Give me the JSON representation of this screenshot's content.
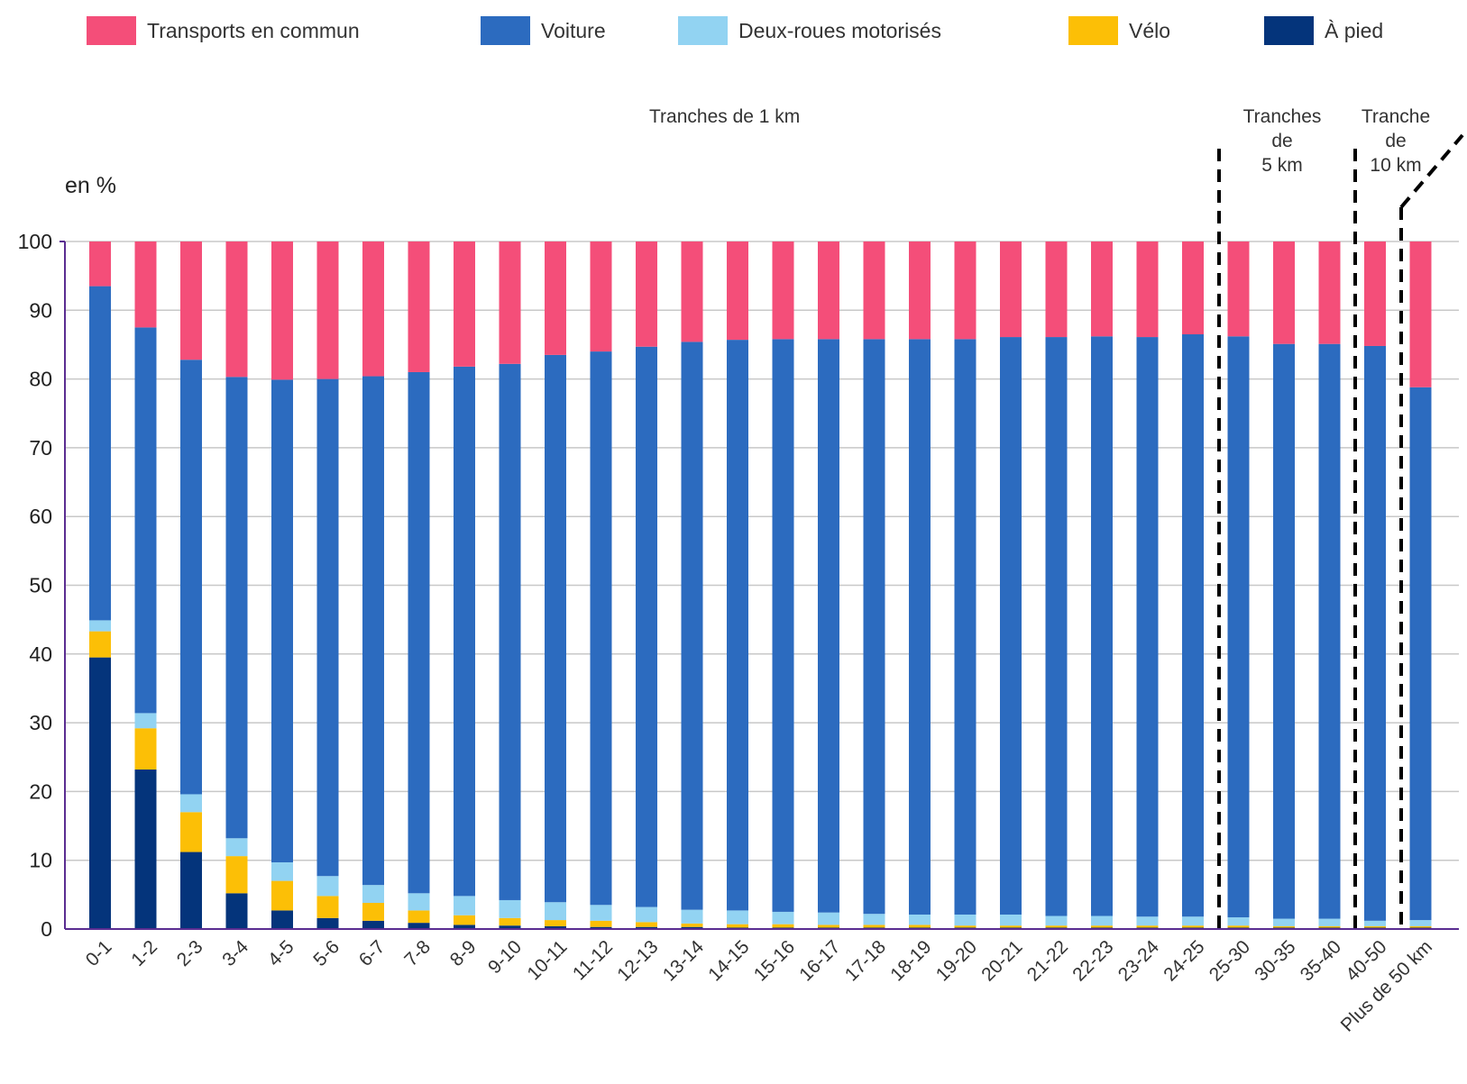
{
  "legend": {
    "items": [
      {
        "label": "Transports en commun",
        "color": "#f44e79"
      },
      {
        "label": "Voiture",
        "color": "#2c6bbf"
      },
      {
        "label": "Deux-roues motorisés",
        "color": "#92d3f2"
      },
      {
        "label": "Vélo",
        "color": "#fcbf06"
      },
      {
        "label": "À pied",
        "color": "#04347b"
      }
    ]
  },
  "annotations": {
    "unit": "en %",
    "group1": "Tranches de 1 km",
    "group2_line1": "Tranches",
    "group2_line2": "de",
    "group2_line3": "5 km",
    "group3_line1": "Tranche",
    "group3_line2": "de",
    "group3_line3": "10 km"
  },
  "chart_data": {
    "type": "bar",
    "stacked": true,
    "ylabel": "en %",
    "ylim": [
      0,
      100
    ],
    "yticks": [
      0,
      10,
      20,
      30,
      40,
      50,
      60,
      70,
      80,
      90,
      100
    ],
    "grid": true,
    "legend_position": "top",
    "categories": [
      "0-1",
      "1-2",
      "2-3",
      "3-4",
      "4-5",
      "5-6",
      "6-7",
      "7-8",
      "8-9",
      "9-10",
      "10-11",
      "11-12",
      "12-13",
      "13-14",
      "14-15",
      "15-16",
      "16-17",
      "17-18",
      "18-19",
      "19-20",
      "20-21",
      "21-22",
      "22-23",
      "23-24",
      "24-25",
      "25-30",
      "30-35",
      "35-40",
      "40-50",
      "Plus de 50 km"
    ],
    "series": [
      {
        "name": "À pied",
        "color": "#04347b",
        "values": [
          39.5,
          23.2,
          11.2,
          5.2,
          2.7,
          1.6,
          1.2,
          0.9,
          0.6,
          0.5,
          0.4,
          0.3,
          0.3,
          0.3,
          0.2,
          0.2,
          0.2,
          0.2,
          0.2,
          0.2,
          0.2,
          0.2,
          0.2,
          0.2,
          0.2,
          0.2,
          0.2,
          0.2,
          0.2,
          0.2
        ]
      },
      {
        "name": "Vélo",
        "color": "#fcbf06",
        "values": [
          3.8,
          6.0,
          5.8,
          5.4,
          4.3,
          3.2,
          2.6,
          1.8,
          1.4,
          1.1,
          0.9,
          0.9,
          0.7,
          0.5,
          0.5,
          0.5,
          0.4,
          0.4,
          0.4,
          0.3,
          0.3,
          0.3,
          0.3,
          0.3,
          0.3,
          0.3,
          0.2,
          0.2,
          0.2,
          0.2
        ]
      },
      {
        "name": "Deux-roues motorisés",
        "color": "#92d3f2",
        "values": [
          1.6,
          2.2,
          2.6,
          2.6,
          2.7,
          2.9,
          2.6,
          2.5,
          2.8,
          2.6,
          2.6,
          2.3,
          2.2,
          2.0,
          2.0,
          1.8,
          1.8,
          1.6,
          1.5,
          1.6,
          1.6,
          1.4,
          1.4,
          1.3,
          1.3,
          1.2,
          1.1,
          1.1,
          0.8,
          0.9
        ]
      },
      {
        "name": "Voiture",
        "color": "#2c6bbf",
        "values": [
          48.6,
          56.1,
          63.2,
          67.1,
          70.2,
          72.3,
          74.0,
          75.8,
          77.0,
          78.0,
          79.6,
          80.5,
          81.5,
          82.6,
          83.0,
          83.3,
          83.4,
          83.6,
          83.7,
          83.7,
          84.0,
          84.2,
          84.3,
          84.3,
          84.7,
          84.5,
          83.6,
          83.6,
          83.6,
          77.5
        ]
      },
      {
        "name": "Transports en commun",
        "color": "#f44e79",
        "values": [
          6.5,
          12.5,
          17.2,
          19.7,
          20.1,
          20.0,
          19.6,
          19.0,
          18.2,
          17.8,
          16.5,
          16.0,
          15.3,
          14.6,
          14.3,
          14.2,
          14.2,
          14.2,
          14.2,
          14.2,
          13.9,
          13.9,
          13.8,
          13.9,
          13.5,
          13.8,
          14.9,
          14.9,
          15.2,
          21.2
        ]
      }
    ]
  }
}
